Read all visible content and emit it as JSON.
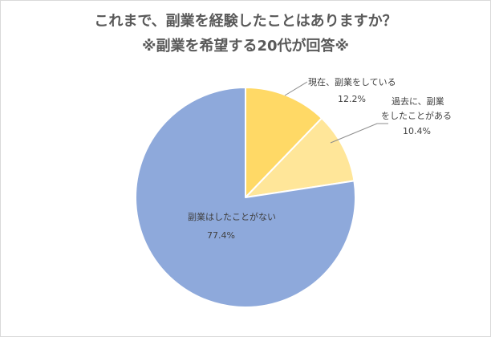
{
  "chart_data": {
    "type": "pie",
    "title": "これまで、副業を経験したことはありますか？",
    "subtitle": "※副業を希望する20代が回答※",
    "slices": [
      {
        "label_lines": [
          "現在、副業をしている"
        ],
        "value": 12.2,
        "value_label": "12.2%",
        "color": "#FFD966"
      },
      {
        "label_lines": [
          "過去に、副業",
          "をしたことがある"
        ],
        "value": 10.4,
        "value_label": "10.4%",
        "color": "#FFE699"
      },
      {
        "label_lines": [
          "副業はしたことがない"
        ],
        "value": 77.4,
        "value_label": "77.4%",
        "color": "#8EA9DB"
      }
    ]
  }
}
